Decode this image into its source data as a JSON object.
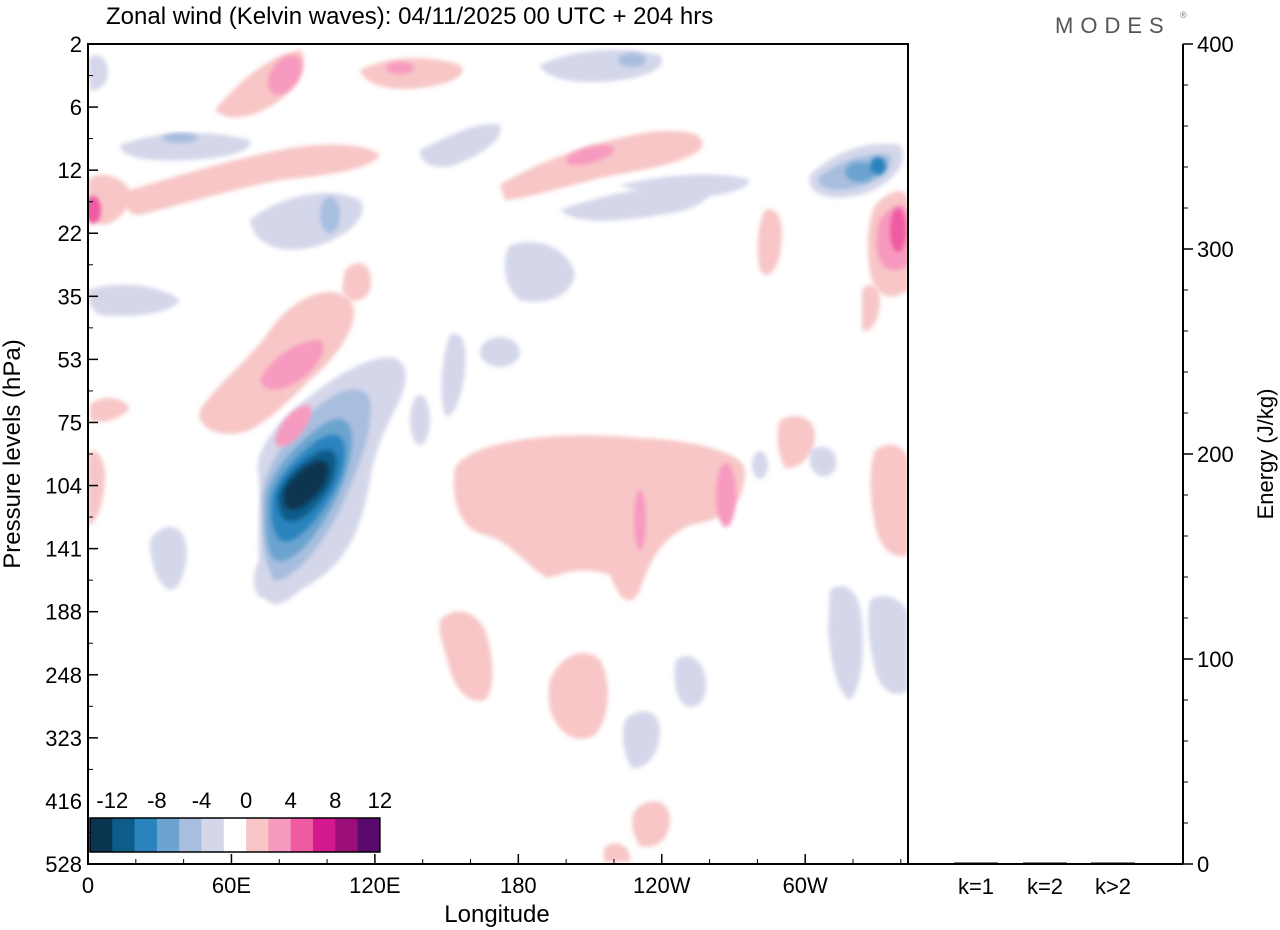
{
  "chart_data": [
    {
      "type": "heatmap",
      "title": "Zonal wind (Kelvin waves):  04/11/2025  00 UTC  + 204 hrs",
      "xlabel": "Longitude",
      "ylabel": "Pressure levels (hPa)",
      "x_ticks": [
        {
          "lon": 0,
          "label": "0"
        },
        {
          "lon": 60,
          "label": "60E"
        },
        {
          "lon": 120,
          "label": "120E"
        },
        {
          "lon": 180,
          "label": "180"
        },
        {
          "lon": 240,
          "label": "120W"
        },
        {
          "lon": 300,
          "label": "60W"
        }
      ],
      "xlim": [
        0,
        343
      ],
      "y_levels": [
        2,
        6,
        12,
        22,
        35,
        53,
        75,
        104,
        141,
        188,
        248,
        323,
        416,
        528
      ],
      "colorbar": {
        "labels": [
          "-12",
          "-8",
          "-4",
          "0",
          "4",
          "8",
          "12"
        ],
        "levels": [
          -14,
          -12,
          -10,
          -8,
          -6,
          -4,
          -2,
          2,
          4,
          6,
          8,
          10,
          12,
          14
        ],
        "colors": [
          "#0a3550",
          "#0e5c8a",
          "#2b83bd",
          "#6aa4cf",
          "#a8bedf",
          "#d4d7ea",
          "#ffffff",
          "#f8c6c6",
          "#f79abf",
          "#ef5aa0",
          "#d4188f",
          "#9c0d7a",
          "#5a0a6e"
        ]
      },
      "features": [
        {
          "sign": "negative",
          "amplitude": -16,
          "lon": 95,
          "level_hPa": 110,
          "note": "strong easterly anomaly core"
        },
        {
          "sign": "positive",
          "amplitude": 6,
          "lon": 215,
          "level_hPa": 115,
          "note": "broad westerly anomaly"
        },
        {
          "sign": "positive",
          "amplitude": 9,
          "lon": 340,
          "level_hPa": 20,
          "note": "westerly anomaly upper level"
        },
        {
          "sign": "negative",
          "amplitude": -8,
          "lon": 330,
          "level_hPa": 12,
          "note": "easterly anomaly upper level"
        },
        {
          "sign": "positive",
          "amplitude": 7,
          "lon": 2,
          "level_hPa": 18,
          "note": "westerly anomaly upper level"
        }
      ],
      "brand": "MODES"
    },
    {
      "type": "bar",
      "categories": [
        "k=1",
        "k=2",
        "k>2"
      ],
      "values": [
        0.5,
        0.2,
        0.6
      ],
      "ylabel": "Energy (J/kg)",
      "ylim": [
        0,
        400
      ],
      "y_ticks": [
        "0",
        "100",
        "200",
        "300",
        "400"
      ]
    }
  ]
}
